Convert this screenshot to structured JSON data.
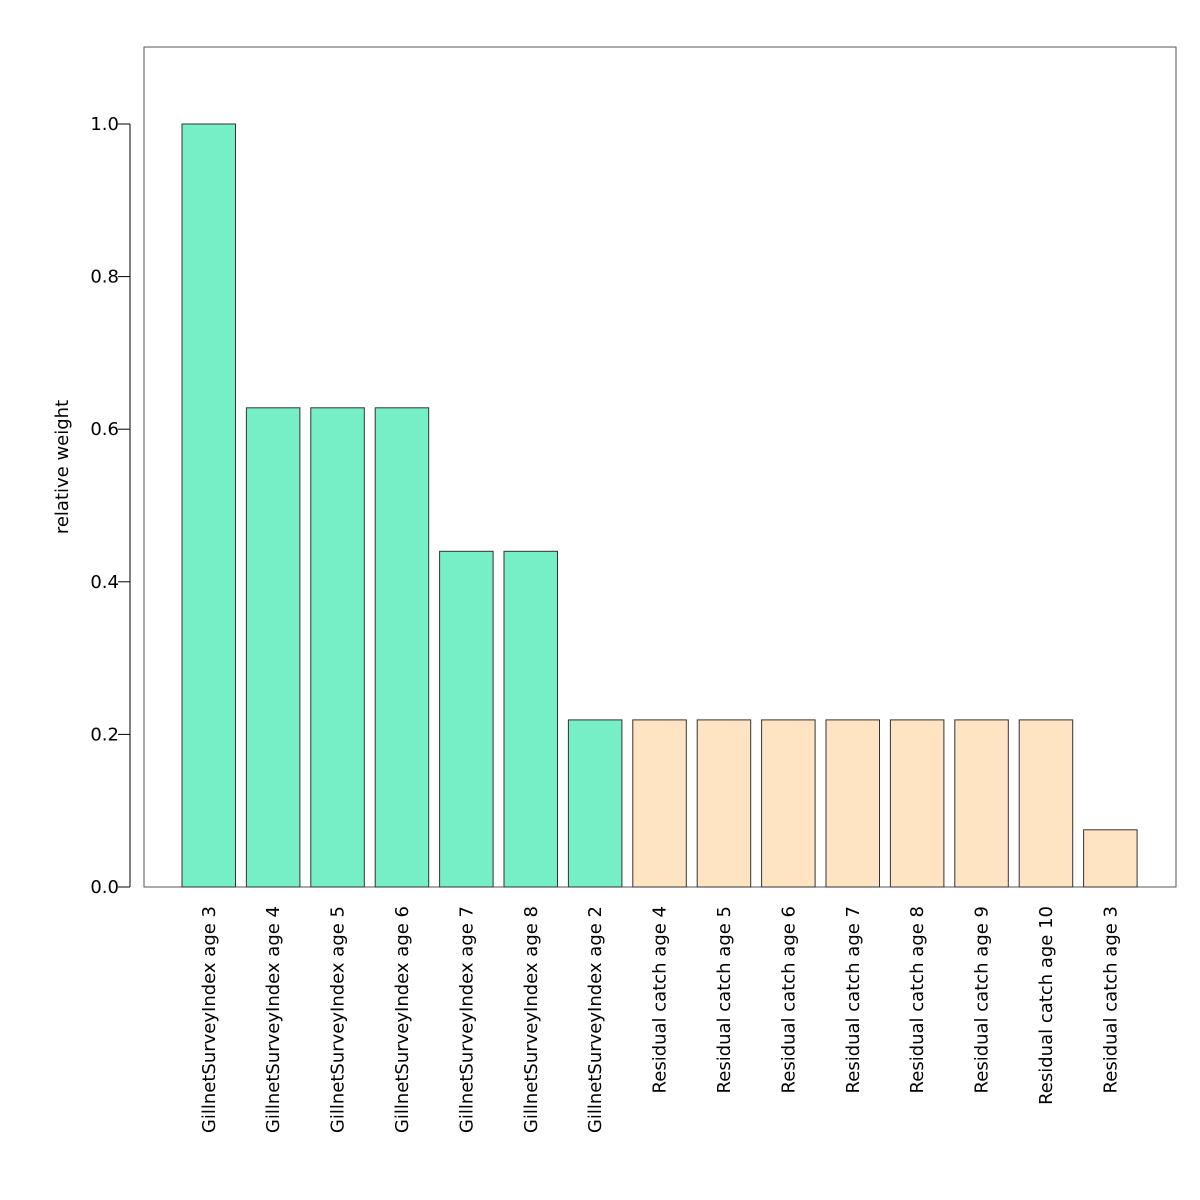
{
  "chart_data": {
    "type": "bar",
    "ylabel": "relative weight",
    "ylim": [
      0,
      1.1
    ],
    "yticks": [
      0.0,
      0.2,
      0.4,
      0.6,
      0.8,
      1.0
    ],
    "ytick_labels": [
      "0.0",
      "0.2",
      "0.4",
      "0.6",
      "0.8",
      "1.0"
    ],
    "categories": [
      "GillnetSurveyIndex age 3",
      "GillnetSurveyIndex age 4",
      "GillnetSurveyIndex age 5",
      "GillnetSurveyIndex age 6",
      "GillnetSurveyIndex age 7",
      "GillnetSurveyIndex age 8",
      "GillnetSurveyIndex age 2",
      "Residual catch age 4",
      "Residual catch age 5",
      "Residual catch age 6",
      "Residual catch age 7",
      "Residual catch age 8",
      "Residual catch age 9",
      "Residual catch age 10",
      "Residual catch age 3"
    ],
    "values": [
      1.0,
      0.628,
      0.628,
      0.628,
      0.44,
      0.44,
      0.219,
      0.219,
      0.219,
      0.219,
      0.219,
      0.219,
      0.219,
      0.219,
      0.075
    ],
    "bar_colors": [
      "#76eec6",
      "#76eec6",
      "#76eec6",
      "#76eec6",
      "#76eec6",
      "#76eec6",
      "#76eec6",
      "#ffe4c4",
      "#ffe4c4",
      "#ffe4c4",
      "#ffe4c4",
      "#ffe4c4",
      "#ffe4c4",
      "#ffe4c4",
      "#ffe4c4"
    ],
    "grid": false
  }
}
